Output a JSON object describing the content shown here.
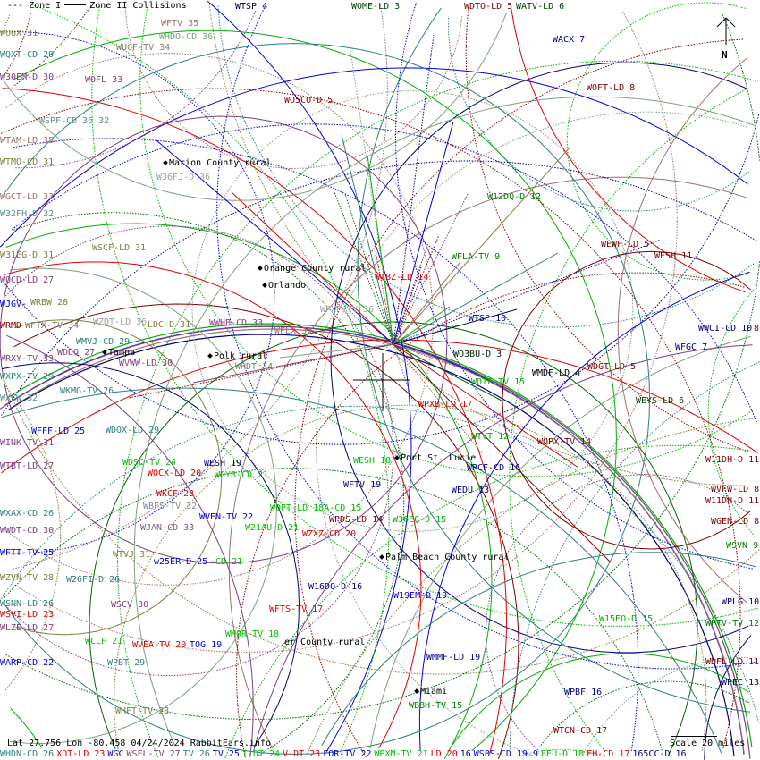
{
  "legend": {
    "zone1": "--- Zone I",
    "zone2": "Zone II Collisions"
  },
  "status": {
    "coords": "Lat 27.756 Lon -80.458 04/24/2024 RabbitEars.info",
    "scale": "Scale 20 miles"
  },
  "north": {
    "label": "N",
    "icon": "north-arrow-icon"
  },
  "colors": {
    "red": "#e00000",
    "darkred": "#800000",
    "green": "#00b000",
    "darkgreen": "#006400",
    "blue": "#0000e0",
    "navy": "#000080",
    "teal": "#2f7f7f",
    "purple": "#7f3f7f",
    "olive": "#807f3f",
    "gray": "#7f9f7f",
    "rosy": "#9f6f6f"
  },
  "cities": [
    {
      "name": "Marion County rural"
    },
    {
      "name": "Orange County rural"
    },
    {
      "name": "Orlando"
    },
    {
      "name": "Tampa"
    },
    {
      "name": "Polk rural"
    },
    {
      "name": "Port St. Lucie"
    },
    {
      "name": "Palm Beach County rural"
    },
    {
      "name": "er County rural"
    },
    {
      "name": "Miami"
    }
  ],
  "stations": [
    {
      "text": "WTSP 4",
      "color": "#000040"
    },
    {
      "text": "WOME-LD 3",
      "color": "#004000"
    },
    {
      "text": "WDTO-LD 5",
      "color": "#800000"
    },
    {
      "text": "WATV-LD 6",
      "color": "#004000"
    },
    {
      "text": "WACX 7",
      "color": "#000080"
    },
    {
      "text": "WOFT-LD 8",
      "color": "#800000"
    },
    {
      "text": "WFTV 35",
      "color": "#9f6f6f"
    },
    {
      "text": "WHDO-CD 36",
      "color": "#7f9f7f"
    },
    {
      "text": "WUCF-TV 34",
      "color": "#807f5f"
    },
    {
      "text": "WOGX 31",
      "color": "#807f3f"
    },
    {
      "text": "WQXT-CD 29",
      "color": "#2f7f7f"
    },
    {
      "text": "W30EM-D 30",
      "color": "#7f3f7f"
    },
    {
      "text": "WOFL 33",
      "color": "#7f3f7f"
    },
    {
      "text": "WO5CO-D 5",
      "color": "#800000"
    },
    {
      "text": "WSPF-CD 36 32",
      "color": "#5f8f8f"
    },
    {
      "text": "WTAM-LD 35",
      "color": "#9f6f6f"
    },
    {
      "text": "WTMO-CD 31",
      "color": "#807f3f"
    },
    {
      "text": "W36FJ-D 36",
      "color": "#9f9f9f"
    },
    {
      "text": "WGCT-LD 33",
      "color": "#9f6f6f"
    },
    {
      "text": "W32FH-D 32",
      "color": "#5f8f8f"
    },
    {
      "text": "WSCF-LD 31",
      "color": "#807f3f"
    },
    {
      "text": "W31EG-D 31",
      "color": "#807f3f"
    },
    {
      "text": "WOCD-LD 27",
      "color": "#7f3f7f"
    },
    {
      "text": "WJGV-",
      "color": "#0000e0"
    },
    {
      "text": "WRBW 28",
      "color": "#807f3f"
    },
    {
      "text": "WRMD",
      "color": "#800000"
    },
    {
      "text": "WFTX-TV 34",
      "color": "#807f5f"
    },
    {
      "text": "WZDT-LD 36",
      "color": "#9f9f9f"
    },
    {
      "text": "LDC-D 31",
      "color": "#807f3f"
    },
    {
      "text": "WWHB-CD 33",
      "color": "#7f3f7f"
    },
    {
      "text": "WPXP-TV 36",
      "color": "#9f9f9f"
    },
    {
      "text": "WFLX 35",
      "color": "#9f6f6f"
    },
    {
      "text": "WTBZ-LD 14",
      "color": "#e00000"
    },
    {
      "text": "WFLA-TV 9",
      "color": "#008000"
    },
    {
      "text": "W12DQ-D 12",
      "color": "#008000"
    },
    {
      "text": "WEWF-LD 5",
      "color": "#800000"
    },
    {
      "text": "WESH 11",
      "color": "#800000"
    },
    {
      "text": "WMVJ-CD 29",
      "color": "#2f7f7f"
    },
    {
      "text": "WVWW-LD 30",
      "color": "#7f3f7f"
    },
    {
      "text": "WHDT 34",
      "color": "#807f5f"
    },
    {
      "text": "WRXY-TV 33",
      "color": "#7f3f7f"
    },
    {
      "text": "WDDQ 27",
      "color": "#7f3f7f"
    },
    {
      "text": "WXPX-TV 29",
      "color": "#2f7f7f"
    },
    {
      "text": "WKMG-TV 26",
      "color": "#2f7f7f"
    },
    {
      "text": "WXCW 32",
      "color": "#5f8f8f"
    },
    {
      "text": "WTSP 10",
      "color": "#000080"
    },
    {
      "text": "WO3BU-D 3",
      "color": "#002000"
    },
    {
      "text": "WMDF-LD 4",
      "color": "#000000"
    },
    {
      "text": "WDGT-LD 5",
      "color": "#800000"
    },
    {
      "text": "WOTF-TV 15",
      "color": "#00b000"
    },
    {
      "text": "WFGC 7",
      "color": "#000080"
    },
    {
      "text": "WWCI-CD 10",
      "color": "#000080"
    },
    {
      "text": "8",
      "color": "#800000"
    },
    {
      "text": "WEYS-LD 6",
      "color": "#004000"
    },
    {
      "text": "WPXB-LD 17",
      "color": "#e00000"
    },
    {
      "text": "WDOX-LD 29",
      "color": "#2f7f7f"
    },
    {
      "text": "WFFF-LD 25",
      "color": "#0000e0"
    },
    {
      "text": "WINK-TV 31",
      "color": "#7f3f7f"
    },
    {
      "text": "WTVT 12",
      "color": "#00b000"
    },
    {
      "text": "WOPX-TV 14",
      "color": "#800000"
    },
    {
      "text": "W11DH-D 11",
      "color": "#800000"
    },
    {
      "text": "WDSC-TV 24",
      "color": "#00c000"
    },
    {
      "text": "WESH 19",
      "color": "#000080"
    },
    {
      "text": "WESH 18",
      "color": "#00c000"
    },
    {
      "text": "WTBT-LD 27",
      "color": "#7f3f7f"
    },
    {
      "text": "WOCX-LD 20",
      "color": "#e00000"
    },
    {
      "text": "WDYB-CD 21",
      "color": "#00c000"
    },
    {
      "text": "WRCF-CD 16",
      "color": "#000080"
    },
    {
      "text": "WVFW-LD 8",
      "color": "#800000"
    },
    {
      "text": "W11DH-D 11",
      "color": "#800000"
    },
    {
      "text": "WFTV 19",
      "color": "#000080"
    },
    {
      "text": "WEDU 13",
      "color": "#000080"
    },
    {
      "text": "WKCF 23",
      "color": "#e00000"
    },
    {
      "text": "WBFS-TV 32",
      "color": "#7f8f8f"
    },
    {
      "text": "WQFT-LD 18A-CD 15",
      "color": "#00c000"
    },
    {
      "text": "WPDS-LD 14",
      "color": "#800000"
    },
    {
      "text": "WXAX-CD 26",
      "color": "#2f7f7f"
    },
    {
      "text": "WVEN-TV 22",
      "color": "#0000e0"
    },
    {
      "text": "W36EC-D 15",
      "color": "#00b000"
    },
    {
      "text": "WGEN-LD 8",
      "color": "#800000"
    },
    {
      "text": "W21AU-D 21",
      "color": "#00c000"
    },
    {
      "text": "WZXZ-CD 20",
      "color": "#e00000"
    },
    {
      "text": "WJAN-CD 33",
      "color": "#7f5f7f"
    },
    {
      "text": "WWDT-CD 30",
      "color": "#7f3f7f"
    },
    {
      "text": "WSVN 9",
      "color": "#008000"
    },
    {
      "text": "WFTT-TV 25",
      "color": "#0000e0"
    },
    {
      "text": "WTVJ 31",
      "color": "#807f3f"
    },
    {
      "text": "w25ER-D 25",
      "color": "#0000e0"
    },
    {
      "text": "-CD 21",
      "color": "#00c000"
    },
    {
      "text": "WZVN-TV 28",
      "color": "#807f3f"
    },
    {
      "text": "W26FI-D 26",
      "color": "#2f7f7f"
    },
    {
      "text": "W16DQ-D 16",
      "color": "#000080"
    },
    {
      "text": "W19EM-D 19",
      "color": "#0000e0"
    },
    {
      "text": "WSNN-LD 26",
      "color": "#2f7f7f"
    },
    {
      "text": "WSVI-LD 23",
      "color": "#e00000"
    },
    {
      "text": "WSCV 30",
      "color": "#7f3f7f"
    },
    {
      "text": "WPLG 10",
      "color": "#000080"
    },
    {
      "text": "WFTS-TV 17",
      "color": "#e00000"
    },
    {
      "text": "WLZE-LD 27",
      "color": "#7f3f7f"
    },
    {
      "text": "W15EO-D 15",
      "color": "#00b000"
    },
    {
      "text": "WPTV-TV 12",
      "color": "#008000"
    },
    {
      "text": "WMOR-TV 18",
      "color": "#00c000"
    },
    {
      "text": "WCLF 21",
      "color": "#00c000"
    },
    {
      "text": "WVEA-TV 20",
      "color": "#e00000"
    },
    {
      "text": "TOG 19",
      "color": "#0000e0"
    },
    {
      "text": "WMMF-LD 19",
      "color": "#000080"
    },
    {
      "text": "WARP-CD 22",
      "color": "#0000e0"
    },
    {
      "text": "WPBT 29",
      "color": "#2f7f7f"
    },
    {
      "text": "WDFL-LD 11",
      "color": "#800000"
    },
    {
      "text": "WPEC 13",
      "color": "#000080"
    },
    {
      "text": "WPBF 16",
      "color": "#000080"
    },
    {
      "text": "WBBH-TV 15",
      "color": "#008000"
    },
    {
      "text": "WHFT-TV 28",
      "color": "#807f3f"
    },
    {
      "text": "WTCN-CD 17",
      "color": "#800000"
    }
  ],
  "bottom_row": [
    {
      "text": "WHDN-CD 26",
      "color": "#2f7f7f"
    },
    {
      "text": "XDT-LD 23",
      "color": "#e00000"
    },
    {
      "text": "WGC",
      "color": "#0000e0"
    },
    {
      "text": "WSFL-TV 27",
      "color": "#7f3f7f"
    },
    {
      "text": "TV 26",
      "color": "#2f7f7f"
    },
    {
      "text": "TV 25",
      "color": "#0000e0"
    },
    {
      "text": "I-DT 24",
      "color": "#00c000"
    },
    {
      "text": "V-DT 23",
      "color": "#e00000"
    },
    {
      "text": "FOR-TV 22",
      "color": "#0000e0"
    },
    {
      "text": "WPXM-TV 21",
      "color": "#00c000"
    },
    {
      "text": "LD 20",
      "color": "#e00000"
    },
    {
      "text": "16",
      "color": "#000080"
    },
    {
      "text": "WSBS-CD 19.9",
      "color": "#0000e0"
    },
    {
      "text": "8EU-D 18",
      "color": "#00c000"
    },
    {
      "text": "EH-CD 17",
      "color": "#e00000"
    },
    {
      "text": "165CC-D 16",
      "color": "#000080"
    }
  ]
}
